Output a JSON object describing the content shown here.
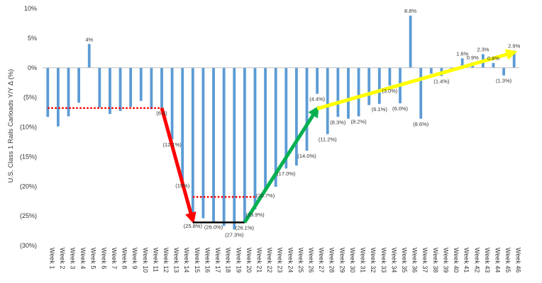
{
  "chart_data": {
    "type": "bar",
    "ylabel": "U.S. Class 1 Rails Carloads Y/Y Δ (%)",
    "ylim": [
      -30,
      10
    ],
    "yticks": [
      10,
      5,
      0,
      -5,
      -10,
      -15,
      -20,
      -25,
      -30
    ],
    "ytick_labels": [
      "10%",
      "5%",
      "0%",
      "(5%)",
      "(10%)",
      "(15%)",
      "(20%)",
      "(25%)",
      "(30%)"
    ],
    "grid": false,
    "legend": "none",
    "bar_color": "#5b9bd5",
    "categories": [
      "Week 1",
      "Week 2",
      "Week 3",
      "Week 4",
      "Week 5",
      "Week 6",
      "Week 7",
      "Week 8",
      "Week 9",
      "Week 10",
      "Week 11",
      "Week 12",
      "Week 13",
      "Week 14",
      "Week 15",
      "Week 16",
      "Week 17",
      "Week 18",
      "Week 19",
      "Week 20",
      "Week 21",
      "Week 22",
      "Week 23",
      "Week 24",
      "Week 25",
      "Week 26",
      "Week 27",
      "Week 28",
      "Week 29",
      "Week 30",
      "Week 31",
      "Week 32",
      "Week 33",
      "Week 34",
      "Week 35",
      "Week 36",
      "Week 37",
      "Week 38",
      "Week 39",
      "Week 40",
      "Week 41",
      "Week 42",
      "Week 43",
      "Week 44",
      "Week 45",
      "Week 46"
    ],
    "values": [
      -8.3,
      -9.9,
      -8.2,
      -5.9,
      4.0,
      -6.7,
      -7.8,
      -7.3,
      -6.6,
      -5.6,
      -7.0,
      -6.8,
      -12.1,
      -19.0,
      -25.8,
      -25.4,
      -26.0,
      -26.7,
      -27.3,
      -26.1,
      -23.9,
      -20.7,
      -20.1,
      -17.0,
      -16.5,
      -14.0,
      -4.4,
      -11.2,
      -8.3,
      -8.6,
      -8.2,
      -6.3,
      -6.1,
      -3.0,
      -6.0,
      8.8,
      -8.6,
      -1.0,
      -1.4,
      -0.6,
      1.6,
      0.9,
      2.3,
      0.8,
      -1.3,
      2.9
    ],
    "data_labels": [
      {
        "week": 5,
        "text": "4%"
      },
      {
        "week": 12,
        "text": "(6.8)"
      },
      {
        "week": 13,
        "text": "(12.1%)"
      },
      {
        "week": 14,
        "text": "(19%)"
      },
      {
        "week": 15,
        "text": "(25.8%)"
      },
      {
        "week": 17,
        "text": "(26.0%)"
      },
      {
        "week": 19,
        "text": "(27.3%)"
      },
      {
        "week": 20,
        "text": "(26.1%)"
      },
      {
        "week": 21,
        "text": "(23.9%)"
      },
      {
        "week": 22,
        "text": "(20.7%)"
      },
      {
        "week": 24,
        "text": "(17.0%)"
      },
      {
        "week": 26,
        "text": "(14.0%)"
      },
      {
        "week": 27,
        "text": "(4.4%)"
      },
      {
        "week": 28,
        "text": "(11.2%)"
      },
      {
        "week": 29,
        "text": "(8.3%)"
      },
      {
        "week": 31,
        "text": "(8.2%)"
      },
      {
        "week": 33,
        "text": "(6.1%)"
      },
      {
        "week": 34,
        "text": "(3.0%)"
      },
      {
        "week": 35,
        "text": "(6.0%)"
      },
      {
        "week": 36,
        "text": "8.8%"
      },
      {
        "week": 37,
        "text": "(8.6%)"
      },
      {
        "week": 39,
        "text": "(1.4%)"
      },
      {
        "week": 41,
        "text": "1.6%"
      },
      {
        "week": 42,
        "text": "0.9%"
      },
      {
        "week": 43,
        "text": "2.3%"
      },
      {
        "week": 44,
        "text": "0.8%"
      },
      {
        "week": 45,
        "text": "(1.3%)"
      },
      {
        "week": 46,
        "text": "2.9%"
      }
    ],
    "annotations": [
      {
        "kind": "dotted-line",
        "color": "#ff0000",
        "from": {
          "week": 1,
          "y": -6.8
        },
        "to": {
          "week": 12,
          "y": -6.8
        }
      },
      {
        "kind": "dotted-line",
        "color": "#ff0000",
        "from": {
          "week": 15,
          "y": -21.8
        },
        "to": {
          "week": 21,
          "y": -21.8
        }
      },
      {
        "kind": "arrow",
        "color": "#ff0000",
        "from": {
          "week": 12,
          "y": -6.8
        },
        "to": {
          "week": 15,
          "y": -25.8
        }
      },
      {
        "kind": "solid-line",
        "color": "#000000",
        "from": {
          "week": 15,
          "y": -26.1
        },
        "to": {
          "week": 20,
          "y": -26.1
        }
      },
      {
        "kind": "arrow",
        "color": "#00b050",
        "from": {
          "week": 20,
          "y": -26.1
        },
        "to": {
          "week": 27,
          "y": -6.9
        }
      },
      {
        "kind": "arrow",
        "color": "#ffff00",
        "from": {
          "week": 27,
          "y": -6.9
        },
        "to": {
          "week": 46,
          "y": 2.6
        }
      }
    ]
  }
}
